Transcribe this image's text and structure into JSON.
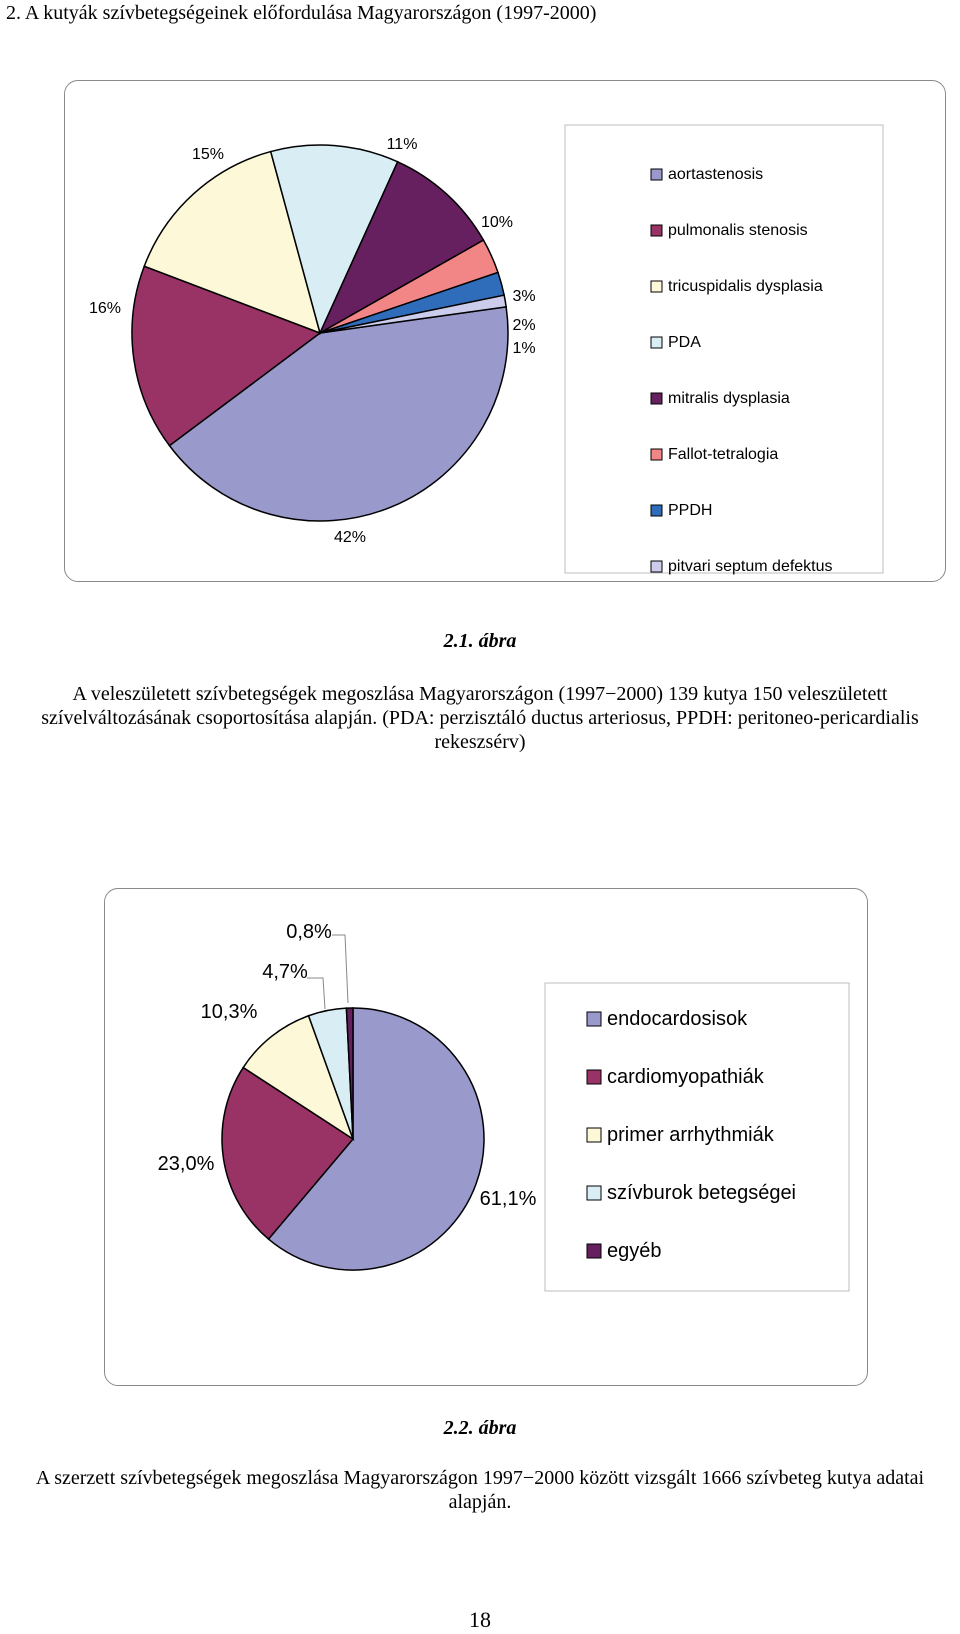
{
  "section_heading": "2. A kutyák szívbetegségeinek előfordulása Magyarországon (1997-2000)",
  "figure1": {
    "number": "2.1. ábra",
    "caption": "A veleszületett szívbetegségek megoszlása Magyarországon (1997−2000) 139 kutya 150 veleszületett szívelváltozásának csoportosítása alapján. (PDA: perzisztáló ductus arteriosus, PPDH: peritoneo-pericardialis rekeszsérv)"
  },
  "figure2": {
    "number": "2.2. ábra",
    "caption": "A szerzett szívbetegségek megoszlása Magyarországon 1997−2000 között vizsgált 1666 szívbeteg kutya adatai alapján."
  },
  "page_number": "18",
  "chart_data": [
    {
      "type": "pie",
      "title": "",
      "categories": [
        "aortastenosis",
        "pulmonalis stenosis",
        "tricuspidalis dysplasia",
        "PDA",
        "mitralis dysplasia",
        "Fallot-tetralogia",
        "PPDH",
        "pitvari septum defektus"
      ],
      "values": [
        42,
        16,
        15,
        11,
        10,
        3,
        2,
        1
      ],
      "data_labels": [
        "42%",
        "16%",
        "15%",
        "11%",
        "10%",
        "3%",
        "2%",
        "1%"
      ],
      "colors": [
        "#9999cc",
        "#993366",
        "#fcf8d8",
        "#d8eef4",
        "#661f5f",
        "#f28585",
        "#2f6cba",
        "#ccccec"
      ],
      "start_angle_deg": 8,
      "direction": "clockwise",
      "legend_position": "right"
    },
    {
      "type": "pie",
      "title": "",
      "categories": [
        "endocardosisok",
        "cardiomyopathiák",
        "primer arrhythmiák",
        "szívburok betegségei",
        "egyéb"
      ],
      "values": [
        61.1,
        23.0,
        10.3,
        4.7,
        0.8
      ],
      "data_labels": [
        "61,1%",
        "23,0%",
        "10,3%",
        "4,7%",
        "0,8%"
      ],
      "colors": [
        "#9999cc",
        "#993366",
        "#fcf8d8",
        "#d8eef4",
        "#661f5f"
      ],
      "start_angle_deg": 90,
      "direction": "clockwise",
      "legend_position": "right"
    }
  ]
}
